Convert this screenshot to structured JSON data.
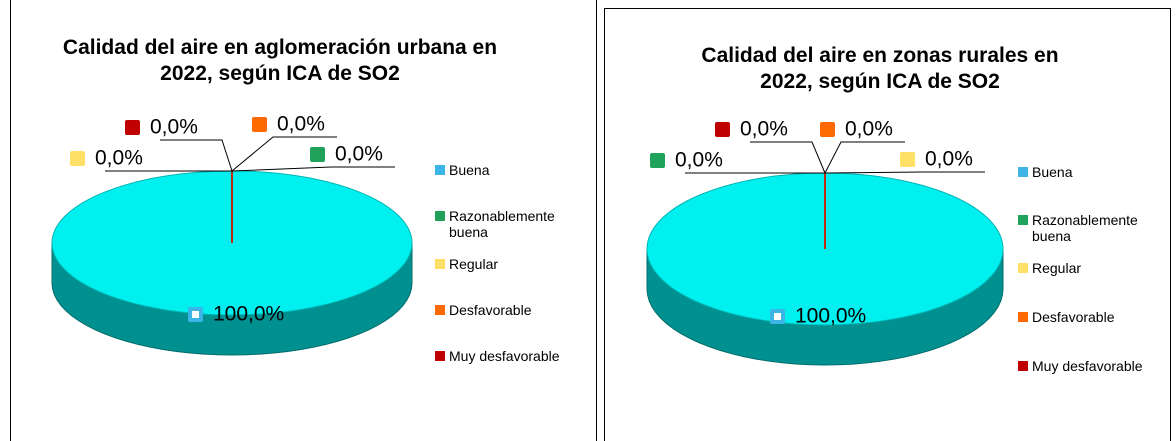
{
  "chart_data": [
    {
      "type": "pie",
      "title": "Calidad del aire en aglomeración urbana en 2022, según ICA de SO2",
      "categories": [
        "Buena",
        "Razonablemente buena",
        "Regular",
        "Desfavorable",
        "Muy desfavorable"
      ],
      "values": [
        100,
        0,
        0,
        0,
        0
      ],
      "value_labels": [
        "100,0%",
        "0,0%",
        "0,0%",
        "0,0%",
        "0,0%"
      ],
      "colors": [
        "#00f0f0",
        "#1fa35a",
        "#ffe066",
        "#ff6a00",
        "#c00000"
      ]
    },
    {
      "type": "pie",
      "title": "Calidad del aire en zonas rurales en 2022, según ICA de SO2",
      "categories": [
        "Buena",
        "Razonablemente buena",
        "Regular",
        "Desfavorable",
        "Muy desfavorable"
      ],
      "values": [
        100,
        0,
        0,
        0,
        0
      ],
      "value_labels": [
        "100,0%",
        "0,0%",
        "0,0%",
        "0,0%",
        "0,0%"
      ],
      "colors": [
        "#00f0f0",
        "#1fa35a",
        "#ffe066",
        "#ff6a00",
        "#c00000"
      ]
    }
  ]
}
